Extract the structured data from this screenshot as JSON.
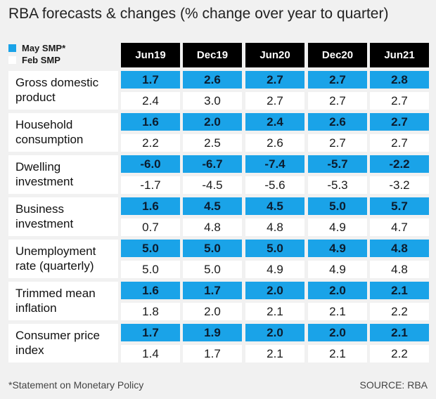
{
  "title": "RBA forecasts & changes (% change over year to quarter)",
  "legend": {
    "may_label": "May SMP*",
    "feb_label": "Feb SMP",
    "may_color": "#1aa3e8",
    "feb_color": "#ffffff"
  },
  "chart_data": {
    "type": "table",
    "title": "RBA forecasts & changes (% change over year to quarter)",
    "columns": [
      "Jun19",
      "Dec19",
      "Jun20",
      "Dec20",
      "Jun21"
    ],
    "series": [
      {
        "name": "May SMP*",
        "color": "#1aa3e8"
      },
      {
        "name": "Feb SMP",
        "color": "#ffffff"
      }
    ],
    "rows": [
      {
        "label_lines": [
          "Gross domestic",
          "product"
        ],
        "may": [
          "1.7",
          "2.6",
          "2.7",
          "2.7",
          "2.8"
        ],
        "feb": [
          "2.4",
          "3.0",
          "2.7",
          "2.7",
          "2.7"
        ]
      },
      {
        "label_lines": [
          "Household",
          "consumption"
        ],
        "may": [
          "1.6",
          "2.0",
          "2.4",
          "2.6",
          "2.7"
        ],
        "feb": [
          "2.2",
          "2.5",
          "2.6",
          "2.7",
          "2.7"
        ]
      },
      {
        "label_lines": [
          "Dwelling",
          "investment"
        ],
        "may": [
          "-6.0",
          "-6.7",
          "-7.4",
          "-5.7",
          "-2.2"
        ],
        "feb": [
          "-1.7",
          "-4.5",
          "-5.6",
          "-5.3",
          "-3.2"
        ]
      },
      {
        "label_lines": [
          "Business",
          "investment"
        ],
        "may": [
          "1.6",
          "4.5",
          "4.5",
          "5.0",
          "5.7"
        ],
        "feb": [
          "0.7",
          "4.8",
          "4.8",
          "4.9",
          "4.7"
        ]
      },
      {
        "label_lines": [
          "Unemployment",
          "rate (quarterly)"
        ],
        "may": [
          "5.0",
          "5.0",
          "5.0",
          "4.9",
          "4.8"
        ],
        "feb": [
          "5.0",
          "5.0",
          "4.9",
          "4.9",
          "4.8"
        ]
      },
      {
        "label_lines": [
          "Trimmed mean",
          "inflation"
        ],
        "may": [
          "1.6",
          "1.7",
          "2.0",
          "2.0",
          "2.1"
        ],
        "feb": [
          "1.8",
          "2.0",
          "2.1",
          "2.1",
          "2.2"
        ]
      },
      {
        "label_lines": [
          "Consumer price",
          "index"
        ],
        "may": [
          "1.7",
          "1.9",
          "2.0",
          "2.0",
          "2.1"
        ],
        "feb": [
          "1.4",
          "1.7",
          "2.1",
          "2.1",
          "2.2"
        ]
      }
    ]
  },
  "footer": {
    "note": "*Statement on Monetary Policy",
    "source": "SOURCE: RBA"
  }
}
